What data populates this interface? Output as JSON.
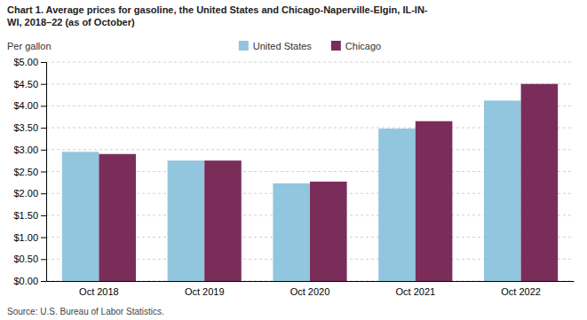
{
  "chart_data": {
    "type": "bar",
    "title": "Chart 1. Average prices for gasoline, the United States and Chicago-Naperville-Elgin, IL-IN-\nWI, 2018–22 (as of October)",
    "ylabel": "Per gallon",
    "source": "Source: U.S. Bureau of Labor Statistics.",
    "categories": [
      "Oct 2018",
      "Oct 2019",
      "Oct 2020",
      "Oct 2021",
      "Oct 2022"
    ],
    "series": [
      {
        "name": "United States",
        "color": "#92C5DE",
        "values": [
          2.95,
          2.75,
          2.23,
          3.48,
          4.12
        ]
      },
      {
        "name": "Chicago",
        "color": "#7B2D5A",
        "values": [
          2.9,
          2.75,
          2.27,
          3.65,
          4.5
        ]
      }
    ],
    "ylim": [
      0,
      5.0
    ],
    "yticks": [
      {
        "value": 0.0,
        "label": "$0.00"
      },
      {
        "value": 0.5,
        "label": "$0.50"
      },
      {
        "value": 1.0,
        "label": "$1.00"
      },
      {
        "value": 1.5,
        "label": "$1.50"
      },
      {
        "value": 2.0,
        "label": "$2.00"
      },
      {
        "value": 2.5,
        "label": "$2.50"
      },
      {
        "value": 3.0,
        "label": "$3.00"
      },
      {
        "value": 3.5,
        "label": "$3.50"
      },
      {
        "value": 4.0,
        "label": "$4.00"
      },
      {
        "value": 4.5,
        "label": "$4.50"
      },
      {
        "value": 5.0,
        "label": "$5.00"
      }
    ],
    "grid": true,
    "legend": "top"
  }
}
